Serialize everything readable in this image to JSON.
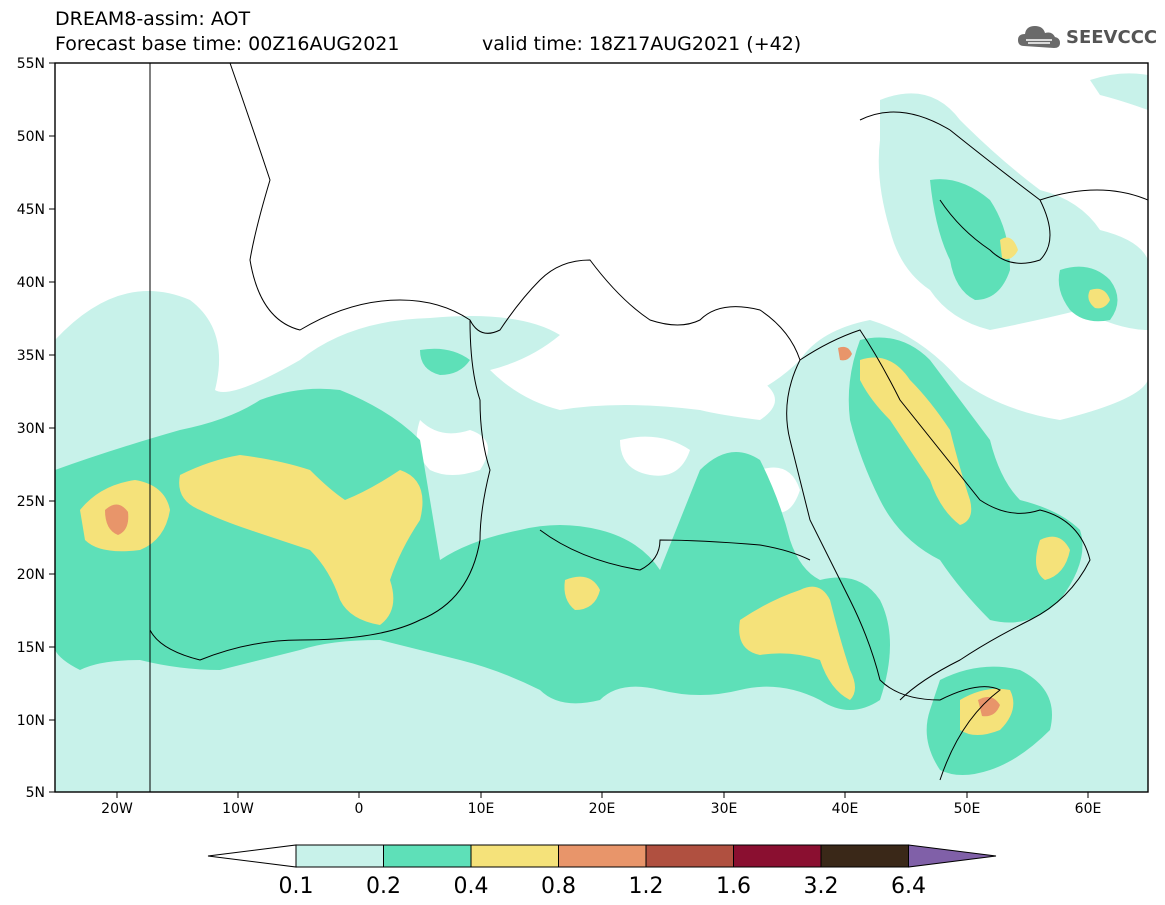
{
  "header": {
    "line1": "DREAM8-assim: AOT",
    "line2_base": "Forecast base time: 00Z16AUG2021",
    "line2_valid": "valid time: 18Z17AUG2021 (+42)"
  },
  "logo": {
    "text": "SEEVCCC",
    "icon": "cloud-icon"
  },
  "map": {
    "lat_labels": [
      "55N",
      "50N",
      "45N",
      "40N",
      "35N",
      "30N",
      "25N",
      "20N",
      "15N",
      "10N",
      "5N"
    ],
    "lon_labels": [
      "20W",
      "10W",
      "0",
      "10E",
      "20E",
      "30E",
      "40E",
      "50E",
      "60E"
    ]
  },
  "colorbar": {
    "levels": [
      "0.1",
      "0.2",
      "0.4",
      "0.8",
      "1.2",
      "1.6",
      "3.2",
      "6.4"
    ],
    "colors": [
      "#ffffff",
      "#c8f2ea",
      "#5ee0b8",
      "#f5e27a",
      "#e8956a",
      "#b05040",
      "#8a0f30",
      "#3a2818",
      "#8060a8"
    ]
  }
}
